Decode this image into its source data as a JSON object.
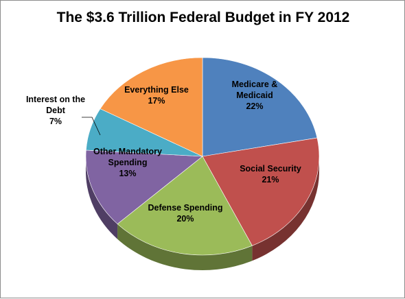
{
  "chart_data": {
    "type": "pie",
    "title": "The $3.6 Trillion Federal Budget in FY 2012",
    "slices": [
      {
        "label": "Medicare & Medicaid",
        "label_lines": [
          "Medicare &",
          "Medicaid"
        ],
        "percent_label": "22%",
        "value": 22,
        "color": "#4F81BD"
      },
      {
        "label": "Social Security",
        "label_lines": [
          "Social Security"
        ],
        "percent_label": "21%",
        "value": 21,
        "color": "#C0504D"
      },
      {
        "label": "Defense Spending",
        "label_lines": [
          "Defense Spending"
        ],
        "percent_label": "20%",
        "value": 20,
        "color": "#9BBB59"
      },
      {
        "label": "Other Mandatory Spending",
        "label_lines": [
          "Other Mandatory",
          "Spending"
        ],
        "percent_label": "13%",
        "value": 13,
        "color": "#8064A2"
      },
      {
        "label": "Interest on the Debt",
        "label_lines": [
          "Interest on the",
          "Debt"
        ],
        "percent_label": "7%",
        "value": 7,
        "color": "#4BACC6"
      },
      {
        "label": "Everything Else",
        "label_lines": [
          "Everything Else"
        ],
        "percent_label": "17%",
        "value": 17,
        "color": "#F79646"
      }
    ],
    "style": "3d-pie",
    "legend": "none"
  }
}
